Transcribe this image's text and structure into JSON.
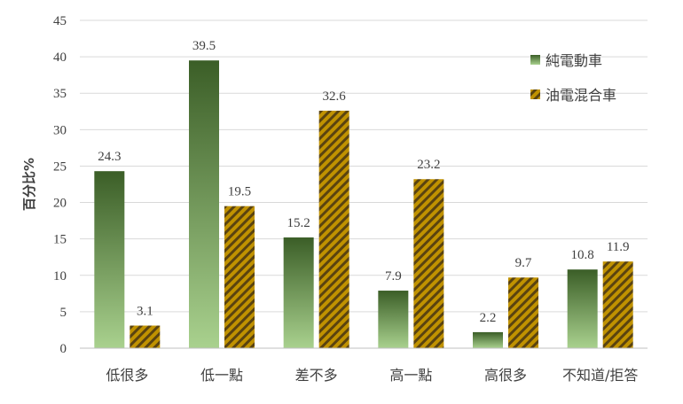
{
  "chart_data": {
    "type": "bar",
    "categories": [
      "低很多",
      "低一點",
      "差不多",
      "高一點",
      "高很多",
      "不知道/拒答"
    ],
    "series": [
      {
        "name": "純電動車",
        "values": [
          24.3,
          39.5,
          15.2,
          7.9,
          2.2,
          10.8
        ]
      },
      {
        "name": "油電混合車",
        "values": [
          3.1,
          19.5,
          32.6,
          23.2,
          9.7,
          11.9
        ]
      }
    ],
    "title": "",
    "xlabel": "",
    "ylabel": "百分比%",
    "ylim": [
      0,
      45
    ],
    "yticks": [
      0,
      5,
      10,
      15,
      20,
      25,
      30,
      35,
      40,
      45
    ],
    "grid": true,
    "legend_position": "top-right",
    "colors": {
      "series1_top": "#3b5e27",
      "series1_bottom": "#a9d18e",
      "series2_base": "#c09200",
      "series2_stripe": "#5a4310",
      "grid": "#d9d9d9",
      "axis": "#bfbfbf"
    }
  }
}
